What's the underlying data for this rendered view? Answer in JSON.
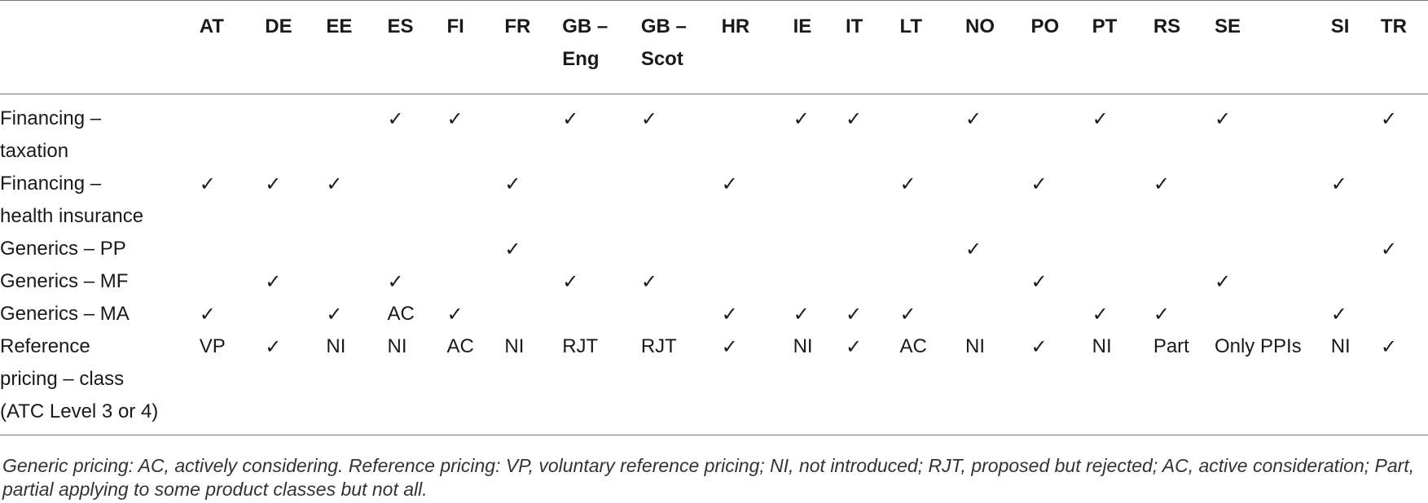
{
  "table": {
    "corner_label": "",
    "columns": [
      "AT",
      "DE",
      "EE",
      "ES",
      "FI",
      "FR",
      "GB – Eng",
      "GB – Scot",
      "HR",
      "IE",
      "IT",
      "LT",
      "NO",
      "PO",
      "PT",
      "RS",
      "SE",
      "SI",
      "TR"
    ],
    "rows": [
      {
        "label": "Financing – taxation",
        "cells": [
          "",
          "",
          "",
          "✓",
          "✓",
          "",
          "✓",
          "✓",
          "",
          "✓",
          "✓",
          "",
          "✓",
          "",
          "✓",
          "",
          "✓",
          "",
          "✓"
        ]
      },
      {
        "label": "Financing – health insurance",
        "cells": [
          "✓",
          "✓",
          "✓",
          "",
          "",
          "✓",
          "",
          "",
          "✓",
          "",
          "",
          "✓",
          "",
          "✓",
          "",
          "✓",
          "",
          "✓",
          ""
        ]
      },
      {
        "label": "Generics – PP",
        "cells": [
          "",
          "",
          "",
          "",
          "",
          "✓",
          "",
          "",
          "",
          "",
          "",
          "",
          "✓",
          "",
          "",
          "",
          "",
          "",
          "✓"
        ]
      },
      {
        "label": "Generics – MF",
        "cells": [
          "",
          "✓",
          "",
          "✓",
          "",
          "",
          "✓",
          "✓",
          "",
          "",
          "",
          "",
          "",
          "✓",
          "",
          "",
          "✓",
          "",
          ""
        ]
      },
      {
        "label": "Generics – MA",
        "cells": [
          "✓",
          "",
          "✓",
          "AC",
          "✓",
          "",
          "",
          "",
          "✓",
          "✓",
          "✓",
          "✓",
          "",
          "",
          "✓",
          "✓",
          "",
          "✓",
          ""
        ]
      },
      {
        "label": "Reference pricing – class (ATC Level 3 or 4)",
        "cells": [
          "VP",
          "✓",
          "NI",
          "NI",
          "AC",
          "NI",
          "RJT",
          "RJT",
          "✓",
          "NI",
          "✓",
          "AC",
          "NI",
          "✓",
          "NI",
          "Part",
          "Only PPIs",
          "NI",
          "✓"
        ]
      }
    ]
  },
  "footnote": "Generic pricing: AC, actively considering. Reference pricing: VP, voluntary reference pricing; NI, not introduced; RJT, proposed but rejected; AC, active consideration; Part, partial applying to some product classes but not all."
}
